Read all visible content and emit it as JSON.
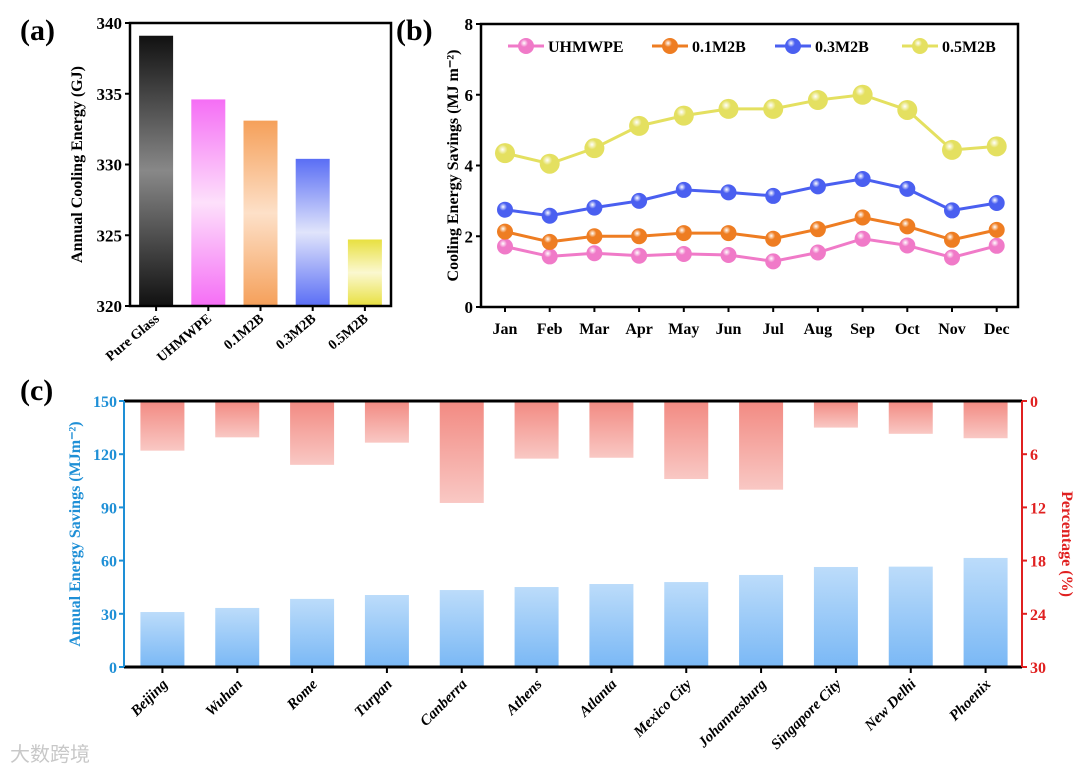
{
  "watermark": "大数跨境",
  "chart_data": [
    {
      "panel": "(a)",
      "type": "bar",
      "ylabel": "Annual Cooling Energy (GJ)",
      "ylim": [
        320,
        340
      ],
      "yticks": [
        320,
        325,
        330,
        335,
        340
      ],
      "categories": [
        "Pure Glass",
        "UHMWPE",
        "0.1M2B",
        "0.3M2B",
        "0.5M2B"
      ],
      "values": [
        339.1,
        334.6,
        333.1,
        330.4,
        324.7
      ],
      "colors": [
        "#111111",
        "#f56ef5",
        "#f5a05a",
        "#5a6ef5",
        "#e8e040"
      ]
    },
    {
      "panel": "(b)",
      "type": "line",
      "ylabel": "Cooling Energy Savings (MJ m⁻²)",
      "ylim": [
        0,
        8
      ],
      "yticks": [
        0,
        2,
        4,
        6,
        8
      ],
      "legend": "top",
      "categories": [
        "Jan",
        "Feb",
        "Mar",
        "Apr",
        "May",
        "Jun",
        "Jul",
        "Aug",
        "Sep",
        "Oct",
        "Nov",
        "Dec"
      ],
      "series": [
        {
          "name": "UHMWPE",
          "color": "#f07ac8",
          "values": [
            1.71,
            1.43,
            1.52,
            1.45,
            1.5,
            1.47,
            1.29,
            1.54,
            1.93,
            1.74,
            1.4,
            1.73
          ]
        },
        {
          "name": "0.1M2B",
          "color": "#ee7d22",
          "values": [
            2.13,
            1.84,
            2.0,
            2.0,
            2.09,
            2.09,
            1.93,
            2.2,
            2.53,
            2.28,
            1.9,
            2.18
          ]
        },
        {
          "name": "0.3M2B",
          "color": "#4a5ff0",
          "values": [
            2.75,
            2.58,
            2.81,
            3.0,
            3.31,
            3.24,
            3.14,
            3.41,
            3.62,
            3.34,
            2.73,
            2.94
          ]
        },
        {
          "name": "0.5M2B",
          "color": "#e4e060",
          "values": [
            4.35,
            4.05,
            4.49,
            5.12,
            5.41,
            5.6,
            5.6,
            5.85,
            6.0,
            5.57,
            4.44,
            4.54
          ]
        }
      ]
    },
    {
      "panel": "(c)",
      "type": "bar",
      "ylabel": "Annual  Energy Savings (MJm⁻²)",
      "ylim": [
        0,
        150
      ],
      "yticks": [
        0,
        30,
        60,
        90,
        120,
        150
      ],
      "y2label": "Percentage (%)",
      "y2lim": [
        0,
        30
      ],
      "y2ticks": [
        0,
        6,
        12,
        18,
        24,
        30
      ],
      "y2_inverted": true,
      "categories": [
        "Beijing",
        "Wuhan",
        "Rome",
        "Turpan",
        "Canberra",
        "Athens",
        "Atlanta",
        "Mexico City",
        "Johannesburg",
        "Singapore City",
        "New Delhi",
        "Phoenix"
      ],
      "series": [
        {
          "name": "Annual Energy Savings",
          "axis": "left",
          "color": "#6fb4f5",
          "values": [
            31.0,
            33.3,
            38.4,
            40.6,
            43.4,
            45.1,
            46.8,
            47.9,
            51.9,
            56.4,
            56.6,
            61.5
          ]
        },
        {
          "name": "Percentage",
          "axis": "right",
          "color": "#f28a82",
          "values": [
            5.6,
            4.1,
            7.2,
            4.7,
            11.5,
            6.5,
            6.4,
            8.8,
            10.0,
            3.0,
            3.7,
            4.2
          ]
        }
      ],
      "left_color": "#1e8fd6",
      "right_color": "#e02020"
    }
  ]
}
